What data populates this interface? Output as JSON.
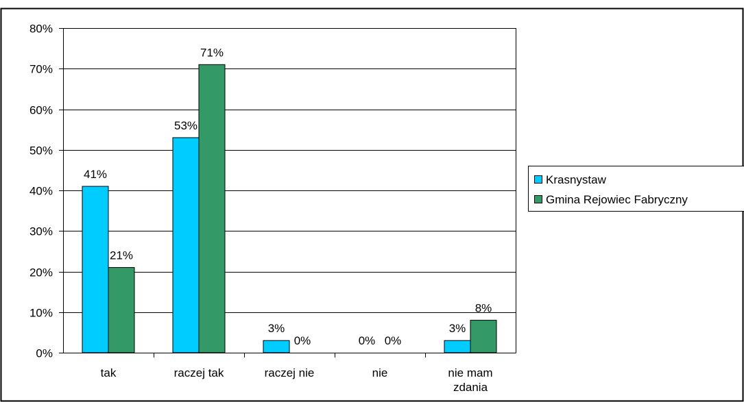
{
  "header_fragment": "",
  "chart_data": {
    "type": "bar",
    "categories": [
      "tak",
      "raczej tak",
      "raczej nie",
      "nie",
      "nie mam zdania"
    ],
    "series": [
      {
        "name": "Krasnystaw",
        "values": [
          41,
          53,
          3,
          0,
          3
        ],
        "labels": [
          "41%",
          "53%",
          "3%",
          "0%",
          "3%"
        ],
        "color": "#00ccff"
      },
      {
        "name": "Gmina Rejowiec Fabryczny",
        "values": [
          21,
          71,
          0,
          0,
          8
        ],
        "labels": [
          "21%",
          "71%",
          "0%",
          "0%",
          "8%"
        ],
        "color": "#339966"
      }
    ],
    "y_ticks": [
      "0%",
      "10%",
      "20%",
      "30%",
      "40%",
      "50%",
      "60%",
      "70%",
      "80%"
    ],
    "ylim": [
      0,
      80
    ],
    "grid": true,
    "legend_position": "right",
    "title": "",
    "xlabel": "",
    "ylabel": ""
  }
}
